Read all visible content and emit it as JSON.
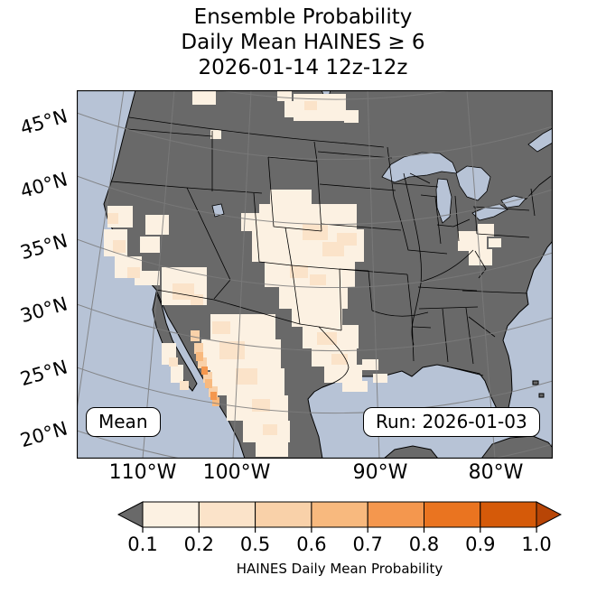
{
  "title": {
    "line1": "Ensemble Probability",
    "line2": "Daily Mean HAINES ≥ 6",
    "line3": "2026-01-14 12z-12z"
  },
  "map": {
    "mean_label": "Mean",
    "run_label": "Run: 2026-01-03",
    "lat_ticks": [
      "45°N",
      "40°N",
      "35°N",
      "30°N",
      "25°N",
      "20°N"
    ],
    "lon_ticks": [
      "110°W",
      "100°W",
      "90°W",
      "80°W"
    ]
  },
  "colorbar": {
    "label": "HAINES Daily Mean Probability",
    "ticks": [
      "0.1",
      "0.2",
      "0.5",
      "0.6",
      "0.7",
      "0.8",
      "0.9",
      "1.0"
    ],
    "under_color": "#696969",
    "segment_colors": [
      "#fcf1e2",
      "#fbe3c9",
      "#f9d1a9",
      "#f8b97e",
      "#f4974e",
      "#ea7420",
      "#d55a09"
    ],
    "over_color": "#b84506"
  },
  "theme": {
    "water": "#b7c3d6",
    "land": "#696969",
    "coast": "#000000",
    "grid": "#7b7b7b",
    "background": "#ffffff"
  },
  "chart_data": {
    "type": "heatmap",
    "title": "Ensemble Probability Daily Mean HAINES ≥ 6",
    "valid_period": "2026-01-14 12z-12z",
    "model_run": "2026-01-03",
    "statistic": "Mean",
    "variable": "HAINES Daily Mean Probability",
    "levels": [
      0.1,
      0.2,
      0.5,
      0.6,
      0.7,
      0.8,
      0.9,
      1.0
    ],
    "lat_range": [
      20,
      47
    ],
    "lon_range": [
      -120,
      -73
    ],
    "elevated_regions": [
      "Southern California and western Great Basin (0.1-0.5)",
      "Colorado / New Mexico / western Kansas plains (0.1-0.5)",
      "Texas panhandle through south Texas (0.1-0.5)",
      "Northern Mexico and Baja California (0.1-0.5)",
      "North Dakota / Minnesota border (0.1-0.2)",
      "Central Appalachians / Virginia (0.1-0.2)"
    ],
    "max_probability_region": "Sierra Madre Occidental, NW Mexico, locally 0.5-0.8"
  }
}
